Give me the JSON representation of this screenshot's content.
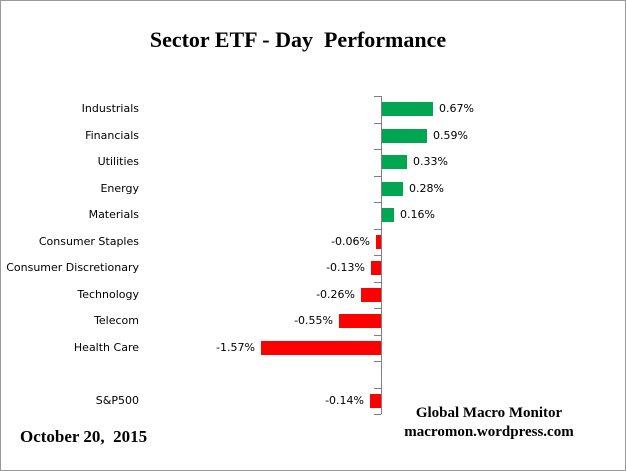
{
  "chart_data": {
    "type": "bar",
    "orientation": "horizontal",
    "title": "Sector ETF - Day  Performance",
    "categories": [
      "Industrials",
      "Financials",
      "Utilities",
      "Energy",
      "Materials",
      "Consumer Staples",
      "Consumer Discretionary",
      "Technology",
      "Telecom",
      "Health Care",
      "",
      "S&P500"
    ],
    "values": [
      0.67,
      0.59,
      0.33,
      0.28,
      0.16,
      -0.06,
      -0.13,
      -0.26,
      -0.55,
      -1.57,
      null,
      -0.14
    ],
    "value_labels": [
      "0.67%",
      "0.59%",
      "0.33%",
      "0.28%",
      "0.16%",
      "-0.06%",
      "-0.13%",
      "-0.26%",
      "-0.55%",
      "-1.57%",
      null,
      "-0.14%"
    ],
    "positive_color": "#00A651",
    "negative_color": "#FF0000",
    "axis_color": "#808080",
    "grid": false,
    "legend": false,
    "xlim": [
      -1.57,
      0.67
    ]
  },
  "footer": {
    "date": "October 20,  2015",
    "source_name": "Global Macro Monitor",
    "source_url": "macromon.wordpress.com"
  }
}
